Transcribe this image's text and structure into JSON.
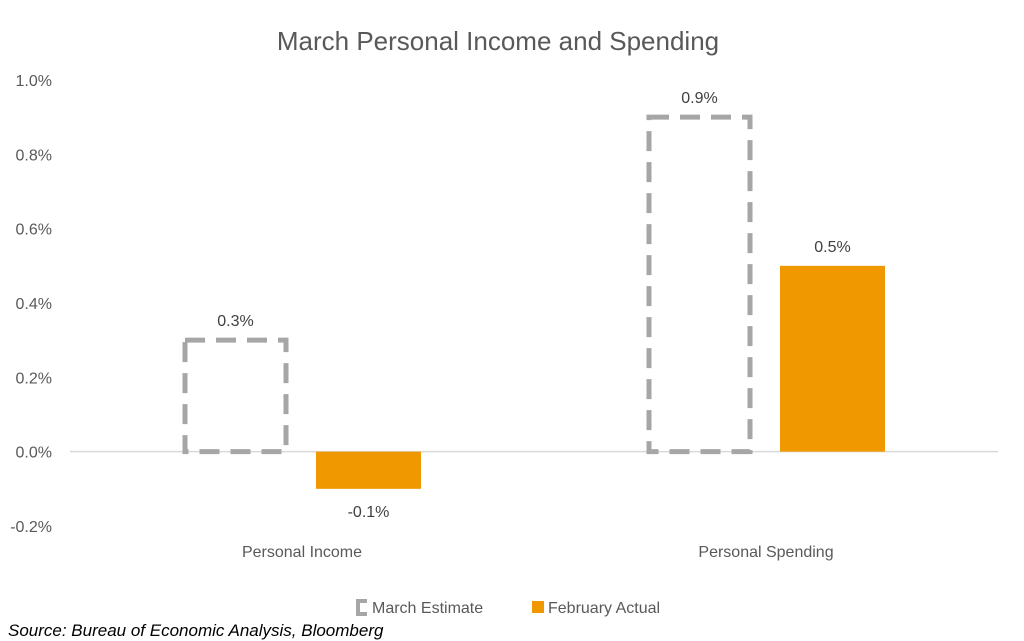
{
  "chart_data": {
    "type": "bar",
    "title": "March Personal Income and Spending",
    "categories": [
      "Personal Income",
      "Personal Spending"
    ],
    "series": [
      {
        "name": "March Estimate",
        "values": [
          0.3,
          0.9
        ],
        "style": "dashed-outline",
        "color": "#A6A6A6"
      },
      {
        "name": "February Actual",
        "values": [
          -0.1,
          0.5
        ],
        "style": "filled",
        "color": "#F09800"
      }
    ],
    "data_labels": [
      [
        "0.3%",
        "0.9%"
      ],
      [
        "-0.1%",
        "0.5%"
      ]
    ],
    "yticks": [
      "-0.2%",
      "0.0%",
      "0.2%",
      "0.4%",
      "0.6%",
      "0.8%",
      "1.0%"
    ],
    "ytick_values": [
      -0.2,
      0,
      0.2,
      0.4,
      0.6,
      0.8,
      1.0
    ],
    "ylim": [
      -0.2,
      1.0
    ],
    "xlabel": "",
    "ylabel": "",
    "grid": false,
    "legend": "bottom"
  },
  "source": "Source: Bureau of Economic Analysis, Bloomberg"
}
